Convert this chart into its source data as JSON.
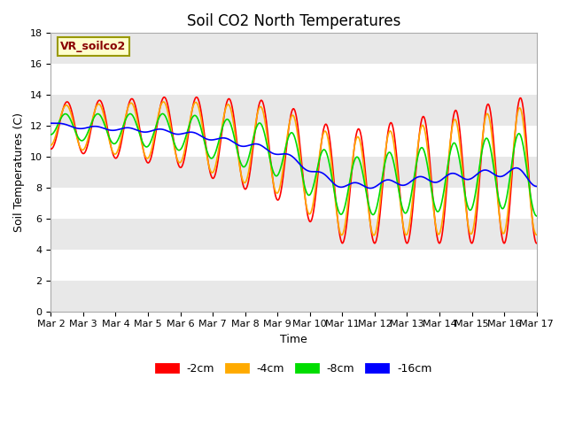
{
  "title": "Soil CO2 North Temperatures",
  "xlabel": "Time",
  "ylabel": "Soil Temperatures (C)",
  "ylim": [
    0,
    18
  ],
  "x_tick_labels": [
    "Mar 2",
    "Mar 3",
    "Mar 4",
    "Mar 5",
    "Mar 6",
    "Mar 7",
    "Mar 8",
    "Mar 9",
    "Mar 10",
    "Mar 11",
    "Mar 12",
    "Mar 13",
    "Mar 14",
    "Mar 15",
    "Mar 16",
    "Mar 17"
  ],
  "series_labels": [
    "-2cm",
    "-4cm",
    "-8cm",
    "-16cm"
  ],
  "series_colors": [
    "#ff0000",
    "#ffaa00",
    "#00dd00",
    "#0000ff"
  ],
  "line_lw": 1.2,
  "bg_color": "#ffffff",
  "plot_bg_color": "#ffffff",
  "band_colors": [
    "#e8e8e8",
    "#ffffff"
  ],
  "annotation_label": "VR_soilco2",
  "annotation_bg": "#ffffcc",
  "annotation_fg": "#880000",
  "annotation_edge": "#999900",
  "title_fontsize": 12,
  "axis_label_fontsize": 9,
  "tick_fontsize": 8,
  "legend_fontsize": 9,
  "grid_color": "#cccccc",
  "grid_lw": 0.8
}
